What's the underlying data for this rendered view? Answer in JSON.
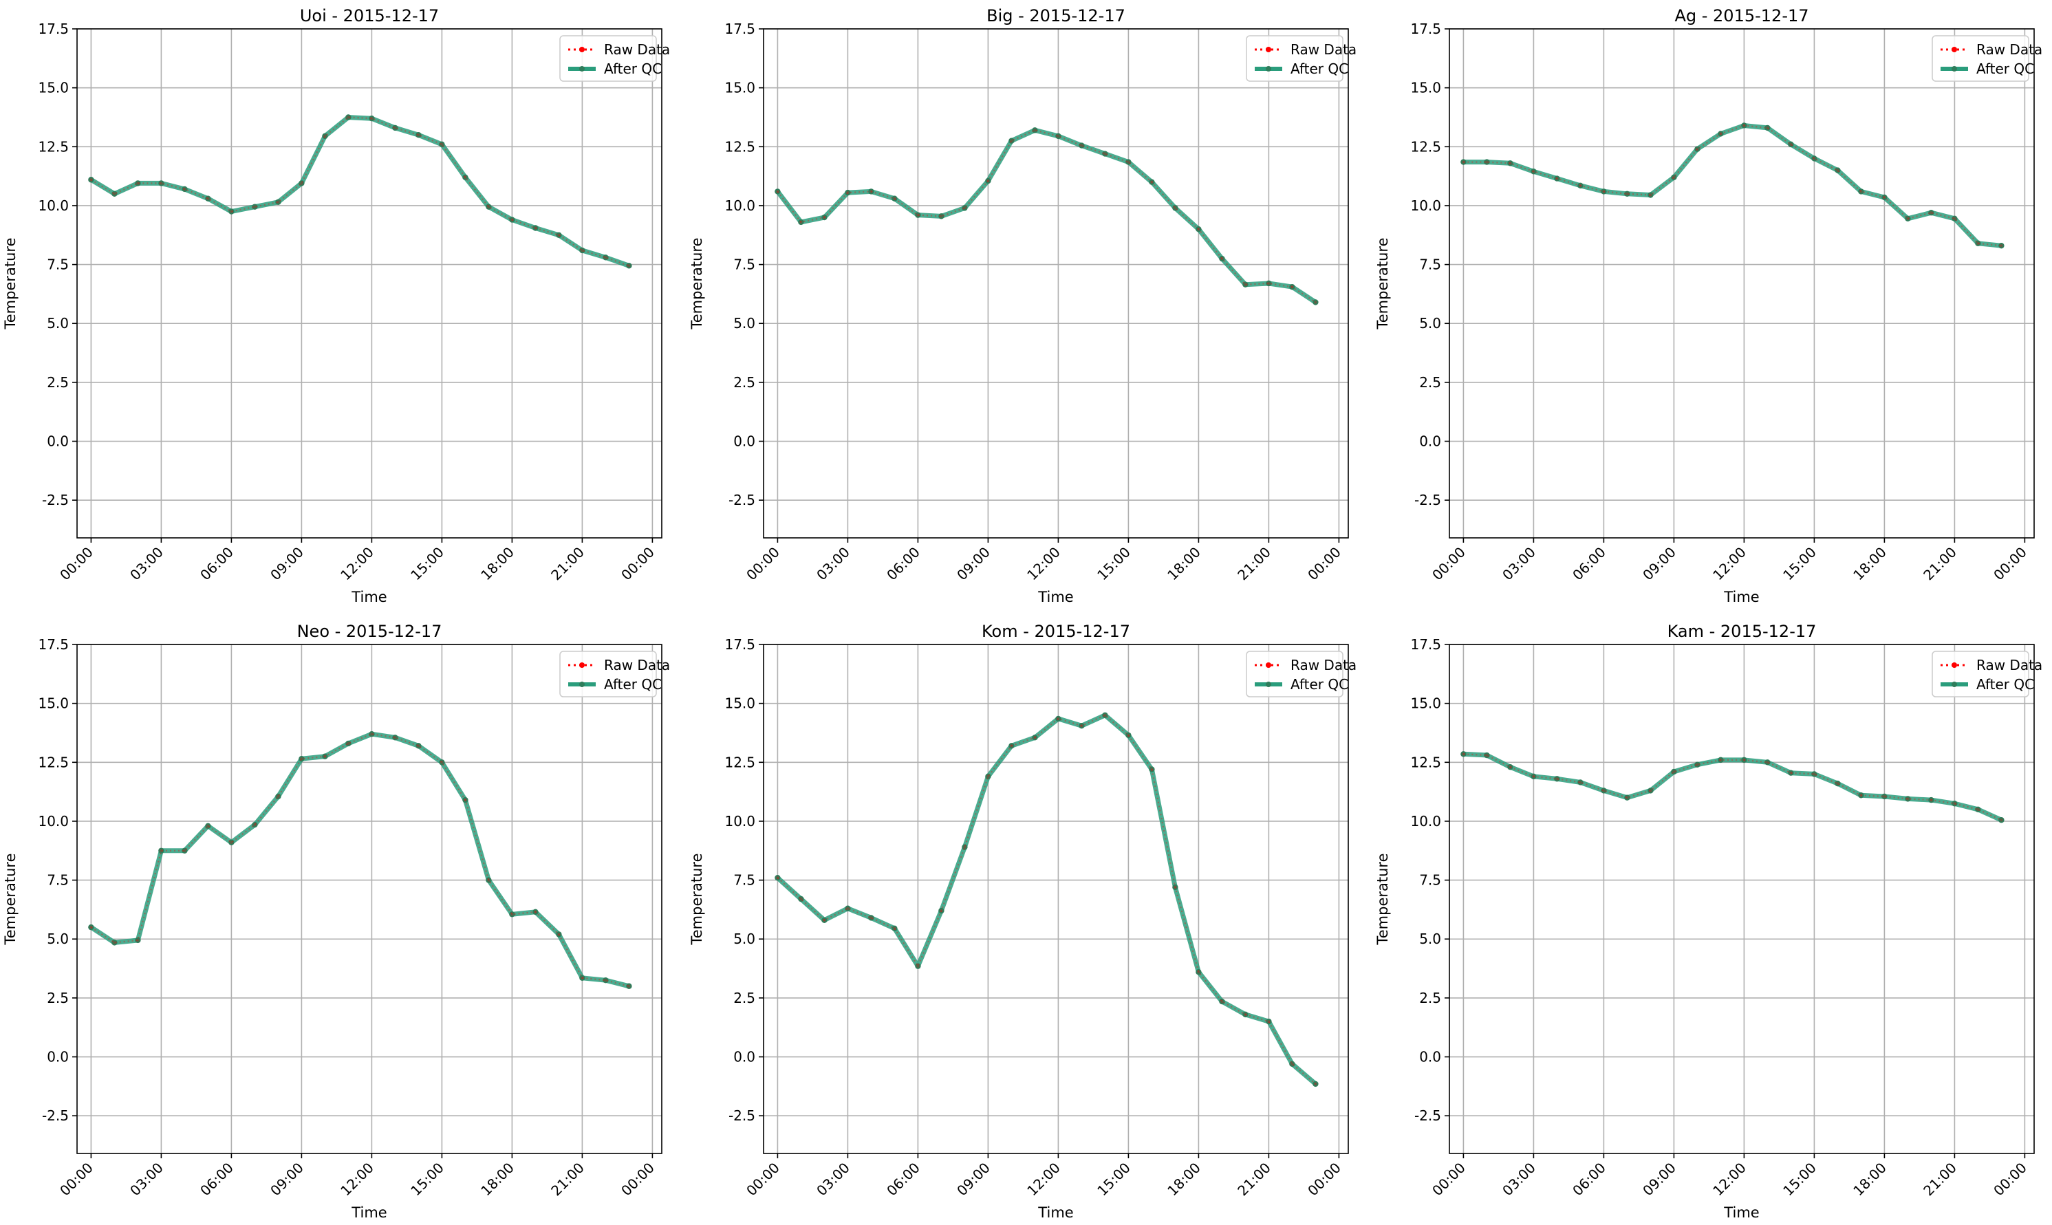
{
  "colors": {
    "raw": "#ff0000",
    "qc": "#2a9d7c",
    "qc_marker": "#2e7d5b",
    "grid": "#b0b0b0"
  },
  "chart_data": [
    {
      "type": "line",
      "title": "Uoi - 2015-12-17",
      "xlabel": "Time",
      "ylabel": "Temperature",
      "x_ticks": [
        "00:00",
        "03:00",
        "06:00",
        "09:00",
        "12:00",
        "15:00",
        "18:00",
        "21:00",
        "00:00"
      ],
      "xlim": [
        -0.6,
        24.4
      ],
      "ylim": [
        -4.1,
        17.5
      ],
      "y_ticks": [
        -2.5,
        0.0,
        2.5,
        5.0,
        7.5,
        10.0,
        12.5,
        15.0,
        17.5
      ],
      "grid": true,
      "legend": "top-right",
      "x": [
        0,
        1,
        2,
        3,
        4,
        5,
        6,
        7,
        8,
        9,
        10,
        11,
        12,
        13,
        14,
        15,
        16,
        17,
        18,
        19,
        20,
        21,
        22,
        23
      ],
      "series": [
        {
          "name": "Raw Data",
          "values": [
            11.1,
            10.5,
            10.95,
            10.95,
            10.7,
            10.3,
            9.75,
            9.95,
            10.15,
            10.95,
            12.95,
            13.75,
            13.7,
            13.3,
            13.0,
            12.6,
            11.2,
            9.95,
            9.4,
            9.05,
            8.75,
            8.1,
            7.8,
            7.45
          ]
        },
        {
          "name": "After QC",
          "values": [
            11.1,
            10.5,
            10.95,
            10.95,
            10.7,
            10.3,
            9.75,
            9.95,
            10.15,
            10.95,
            12.95,
            13.75,
            13.7,
            13.3,
            13.0,
            12.6,
            11.2,
            9.95,
            9.4,
            9.05,
            8.75,
            8.1,
            7.8,
            7.45
          ]
        }
      ]
    },
    {
      "type": "line",
      "title": "Big - 2015-12-17",
      "xlabel": "Time",
      "ylabel": "Temperature",
      "x_ticks": [
        "00:00",
        "03:00",
        "06:00",
        "09:00",
        "12:00",
        "15:00",
        "18:00",
        "21:00",
        "00:00"
      ],
      "xlim": [
        -0.6,
        24.4
      ],
      "ylim": [
        -4.1,
        17.5
      ],
      "y_ticks": [
        -2.5,
        0.0,
        2.5,
        5.0,
        7.5,
        10.0,
        12.5,
        15.0,
        17.5
      ],
      "grid": true,
      "legend": "top-right",
      "x": [
        0,
        1,
        2,
        3,
        4,
        5,
        6,
        7,
        8,
        9,
        10,
        11,
        12,
        13,
        14,
        15,
        16,
        17,
        18,
        19,
        20,
        21,
        22,
        23
      ],
      "series": [
        {
          "name": "Raw Data",
          "values": [
            10.6,
            9.3,
            9.5,
            10.55,
            10.6,
            10.3,
            9.6,
            9.55,
            9.9,
            11.05,
            12.75,
            13.2,
            12.95,
            12.55,
            12.2,
            11.85,
            11.0,
            9.9,
            9.0,
            7.75,
            6.65,
            6.7,
            6.55,
            5.9
          ]
        },
        {
          "name": "After QC",
          "values": [
            10.6,
            9.3,
            9.5,
            10.55,
            10.6,
            10.3,
            9.6,
            9.55,
            9.9,
            11.05,
            12.75,
            13.2,
            12.95,
            12.55,
            12.2,
            11.85,
            11.0,
            9.9,
            9.0,
            7.75,
            6.65,
            6.7,
            6.55,
            5.9
          ]
        }
      ]
    },
    {
      "type": "line",
      "title": "Ag - 2015-12-17",
      "xlabel": "Time",
      "ylabel": "Temperature",
      "x_ticks": [
        "00:00",
        "03:00",
        "06:00",
        "09:00",
        "12:00",
        "15:00",
        "18:00",
        "21:00",
        "00:00"
      ],
      "xlim": [
        -0.6,
        24.4
      ],
      "ylim": [
        -4.1,
        17.5
      ],
      "y_ticks": [
        -2.5,
        0.0,
        2.5,
        5.0,
        7.5,
        10.0,
        12.5,
        15.0,
        17.5
      ],
      "grid": true,
      "legend": "top-right",
      "x": [
        0,
        1,
        2,
        3,
        4,
        5,
        6,
        7,
        8,
        9,
        10,
        11,
        12,
        13,
        14,
        15,
        16,
        17,
        18,
        19,
        20,
        21,
        22,
        23
      ],
      "series": [
        {
          "name": "Raw Data",
          "values": [
            11.85,
            11.85,
            11.8,
            11.45,
            11.15,
            10.85,
            10.6,
            10.5,
            10.45,
            11.2,
            12.4,
            13.05,
            13.4,
            13.3,
            12.6,
            12.0,
            11.5,
            10.6,
            10.35,
            9.45,
            9.7,
            9.45,
            8.4,
            8.3
          ]
        },
        {
          "name": "After QC",
          "values": [
            11.85,
            11.85,
            11.8,
            11.45,
            11.15,
            10.85,
            10.6,
            10.5,
            10.45,
            11.2,
            12.4,
            13.05,
            13.4,
            13.3,
            12.6,
            12.0,
            11.5,
            10.6,
            10.35,
            9.45,
            9.7,
            9.45,
            8.4,
            8.3
          ]
        }
      ]
    },
    {
      "type": "line",
      "title": "Neo - 2015-12-17",
      "xlabel": "Time",
      "ylabel": "Temperature",
      "x_ticks": [
        "00:00",
        "03:00",
        "06:00",
        "09:00",
        "12:00",
        "15:00",
        "18:00",
        "21:00",
        "00:00"
      ],
      "xlim": [
        -0.6,
        24.4
      ],
      "ylim": [
        -4.1,
        17.5
      ],
      "y_ticks": [
        -2.5,
        0.0,
        2.5,
        5.0,
        7.5,
        10.0,
        12.5,
        15.0,
        17.5
      ],
      "grid": true,
      "legend": "top-right",
      "x": [
        0,
        1,
        2,
        3,
        4,
        5,
        6,
        7,
        8,
        9,
        10,
        11,
        12,
        13,
        14,
        15,
        16,
        17,
        18,
        19,
        20,
        21,
        22,
        23
      ],
      "series": [
        {
          "name": "Raw Data",
          "values": [
            5.5,
            4.85,
            4.95,
            8.75,
            8.75,
            9.8,
            9.1,
            9.85,
            11.05,
            12.65,
            12.75,
            13.3,
            13.7,
            13.55,
            13.2,
            12.5,
            10.9,
            7.5,
            6.05,
            6.15,
            5.2,
            3.35,
            3.25,
            3.0
          ]
        },
        {
          "name": "After QC",
          "values": [
            5.5,
            4.85,
            4.95,
            8.75,
            8.75,
            9.8,
            9.1,
            9.85,
            11.05,
            12.65,
            12.75,
            13.3,
            13.7,
            13.55,
            13.2,
            12.5,
            10.9,
            7.5,
            6.05,
            6.15,
            5.2,
            3.35,
            3.25,
            3.0
          ]
        }
      ]
    },
    {
      "type": "line",
      "title": "Kom - 2015-12-17",
      "xlabel": "Time",
      "ylabel": "Temperature",
      "x_ticks": [
        "00:00",
        "03:00",
        "06:00",
        "09:00",
        "12:00",
        "15:00",
        "18:00",
        "21:00",
        "00:00"
      ],
      "xlim": [
        -0.6,
        24.4
      ],
      "ylim": [
        -4.1,
        17.5
      ],
      "y_ticks": [
        -2.5,
        0.0,
        2.5,
        5.0,
        7.5,
        10.0,
        12.5,
        15.0,
        17.5
      ],
      "grid": true,
      "legend": "top-right",
      "x": [
        0,
        1,
        2,
        3,
        4,
        5,
        6,
        7,
        8,
        9,
        10,
        11,
        12,
        13,
        14,
        15,
        16,
        17,
        18,
        19,
        20,
        21,
        22,
        23
      ],
      "series": [
        {
          "name": "Raw Data",
          "values": [
            7.6,
            6.7,
            5.8,
            6.3,
            5.9,
            5.45,
            3.85,
            6.2,
            8.9,
            11.9,
            13.2,
            13.55,
            14.35,
            14.05,
            14.5,
            13.65,
            12.2,
            7.2,
            3.6,
            2.35,
            1.8,
            1.5,
            -0.3,
            -1.15
          ]
        },
        {
          "name": "After QC",
          "values": [
            7.6,
            6.7,
            5.8,
            6.3,
            5.9,
            5.45,
            3.85,
            6.2,
            8.9,
            11.9,
            13.2,
            13.55,
            14.35,
            14.05,
            14.5,
            13.65,
            12.2,
            7.2,
            3.6,
            2.35,
            1.8,
            1.5,
            -0.3,
            -1.15
          ]
        }
      ]
    },
    {
      "type": "line",
      "title": "Kam - 2015-12-17",
      "xlabel": "Time",
      "ylabel": "Temperature",
      "x_ticks": [
        "00:00",
        "03:00",
        "06:00",
        "09:00",
        "12:00",
        "15:00",
        "18:00",
        "21:00",
        "00:00"
      ],
      "xlim": [
        -0.6,
        24.4
      ],
      "ylim": [
        -4.1,
        17.5
      ],
      "y_ticks": [
        -2.5,
        0.0,
        2.5,
        5.0,
        7.5,
        10.0,
        12.5,
        15.0,
        17.5
      ],
      "grid": true,
      "legend": "top-right",
      "x": [
        0,
        1,
        2,
        3,
        4,
        5,
        6,
        7,
        8,
        9,
        10,
        11,
        12,
        13,
        14,
        15,
        16,
        17,
        18,
        19,
        20,
        21,
        22,
        23
      ],
      "series": [
        {
          "name": "Raw Data",
          "values": [
            12.85,
            12.8,
            12.3,
            11.9,
            11.8,
            11.65,
            11.3,
            11.0,
            11.3,
            12.1,
            12.4,
            12.6,
            12.6,
            12.5,
            12.05,
            12.0,
            11.6,
            11.1,
            11.05,
            10.95,
            10.9,
            10.75,
            10.5,
            10.05
          ]
        },
        {
          "name": "After QC",
          "values": [
            12.85,
            12.8,
            12.3,
            11.9,
            11.8,
            11.65,
            11.3,
            11.0,
            11.3,
            12.1,
            12.4,
            12.6,
            12.6,
            12.5,
            12.05,
            12.0,
            11.6,
            11.1,
            11.05,
            10.95,
            10.9,
            10.75,
            10.5,
            10.05
          ]
        }
      ]
    }
  ]
}
